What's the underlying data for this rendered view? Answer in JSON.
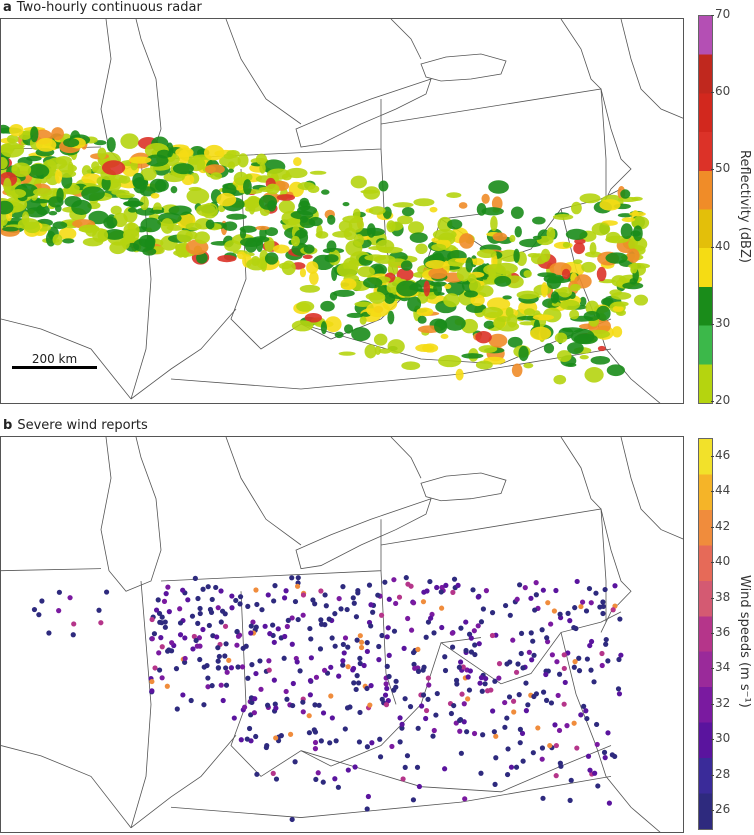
{
  "panel_a": {
    "letter": "a",
    "title": "Two-hourly continuous radar",
    "scale_label": "200 km",
    "colorbar": {
      "label": "Reflectivity (dBZ)",
      "ticks": [
        "70",
        "60",
        "50",
        "40",
        "30",
        "20"
      ],
      "range": [
        20,
        70
      ],
      "colors": [
        "#b5d40f",
        "#3cb84a",
        "#1a8c1a",
        "#f5dc14",
        "#e3bf0a",
        "#f08c28",
        "#dc3228",
        "#d2281e",
        "#c0281e",
        "#b44fb4"
      ]
    }
  },
  "panel_b": {
    "letter": "b",
    "title": "Severe wind reports",
    "colorbar": {
      "label": "Wind speeds (m s⁻¹)",
      "ticks": [
        "26",
        "28",
        "30",
        "32",
        "34",
        "36",
        "38",
        "40",
        "42",
        "44",
        "46"
      ],
      "range": [
        25,
        47
      ],
      "colors": [
        "#2e2a7e",
        "#3a2b99",
        "#5a149e",
        "#7a1aa0",
        "#9a2a9a",
        "#b5358a",
        "#d45a72",
        "#e66a58",
        "#f08c3c",
        "#f5b428",
        "#f2e12a"
      ]
    }
  }
}
